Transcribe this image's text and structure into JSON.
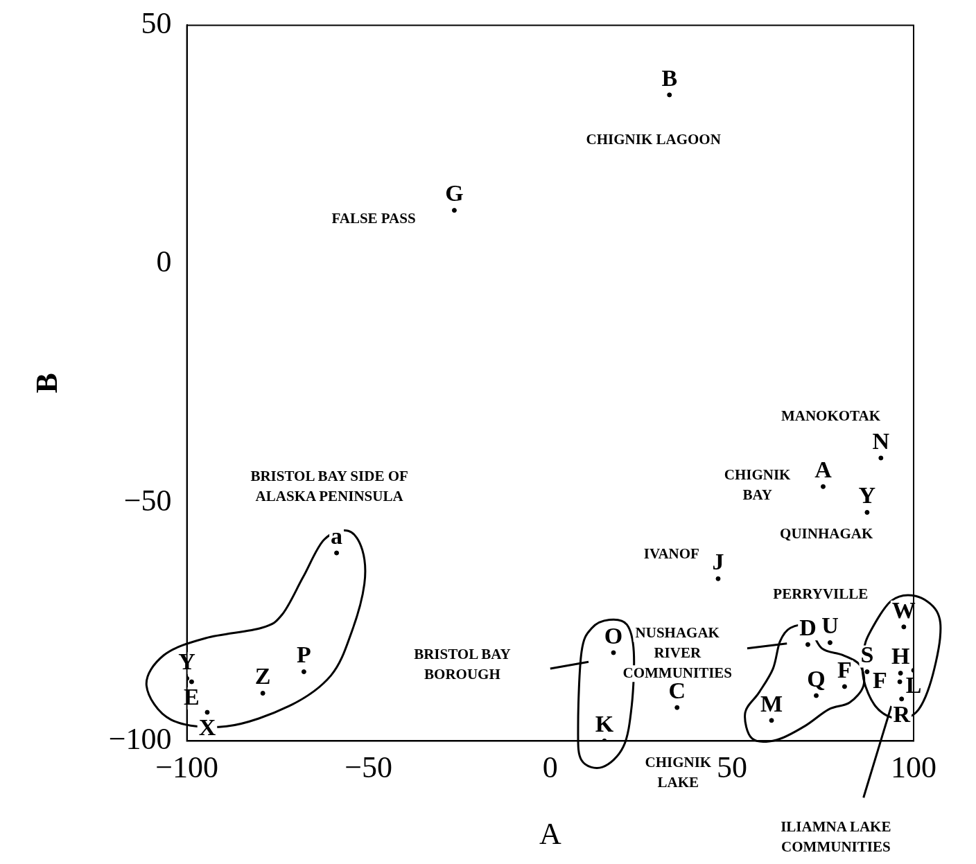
{
  "chart_data": {
    "type": "scatter",
    "xlabel": "A",
    "ylabel": "B",
    "xlim": [
      -100,
      100
    ],
    "ylim": [
      -100,
      50
    ],
    "xticks": [
      -100,
      -50,
      0,
      50,
      100
    ],
    "yticks": [
      -100,
      -50,
      0,
      50
    ],
    "grid": false,
    "legend": false,
    "marker": "circle",
    "series": [
      {
        "color": "#000000",
        "x": [
          32.8,
          -26.4,
          91,
          75.1,
          87.2,
          -58.8,
          46.2,
          97.3,
          70.9,
          77,
          17.4,
          -100,
          -98.7,
          -67.8,
          87.2,
          96.4,
          100,
          81,
          96.2,
          -79.1,
          73.2,
          96.7,
          -94.4,
          34.9,
          60.9,
          14.9
        ],
        "values": [
          35.4,
          11.2,
          -40.7,
          -46.7,
          -52.1,
          -60.6,
          -66,
          -76.1,
          -79.8,
          -79.4,
          -81.5,
          -86.9,
          -87.6,
          -85.5,
          -85.5,
          -85.8,
          -85.2,
          -88.6,
          -87.6,
          -90,
          -90.5,
          -91.2,
          -94,
          -93,
          -95.7,
          -100
        ],
        "value_labels": [
          "B",
          "G",
          "N",
          "A",
          "Y",
          "a",
          "J",
          "W",
          "D",
          "U",
          "O",
          "Y",
          "E",
          "P",
          "S",
          "H",
          "L",
          "F",
          "F",
          "Z",
          "Q",
          "R",
          "X",
          "C",
          "M",
          "K"
        ]
      }
    ],
    "annotations": [
      "CHIGNIK LAGOON",
      "FALSE PASS",
      "MANOKOTAK",
      "CHIGNIK\nBAY",
      "QUINHAGAK",
      "BRISTOL BAY SIDE OF\nALASKA PENINSULA",
      "IVANOF",
      "PERRYVILLE",
      "NUSHAGAK\nRIVER\nCOMMUNITIES",
      "BRISTOL BAY\nBOROUGH",
      "CHIGNIK\nLAKE",
      "ILIAMNA LAKE\nCOMMUNITIES"
    ]
  }
}
